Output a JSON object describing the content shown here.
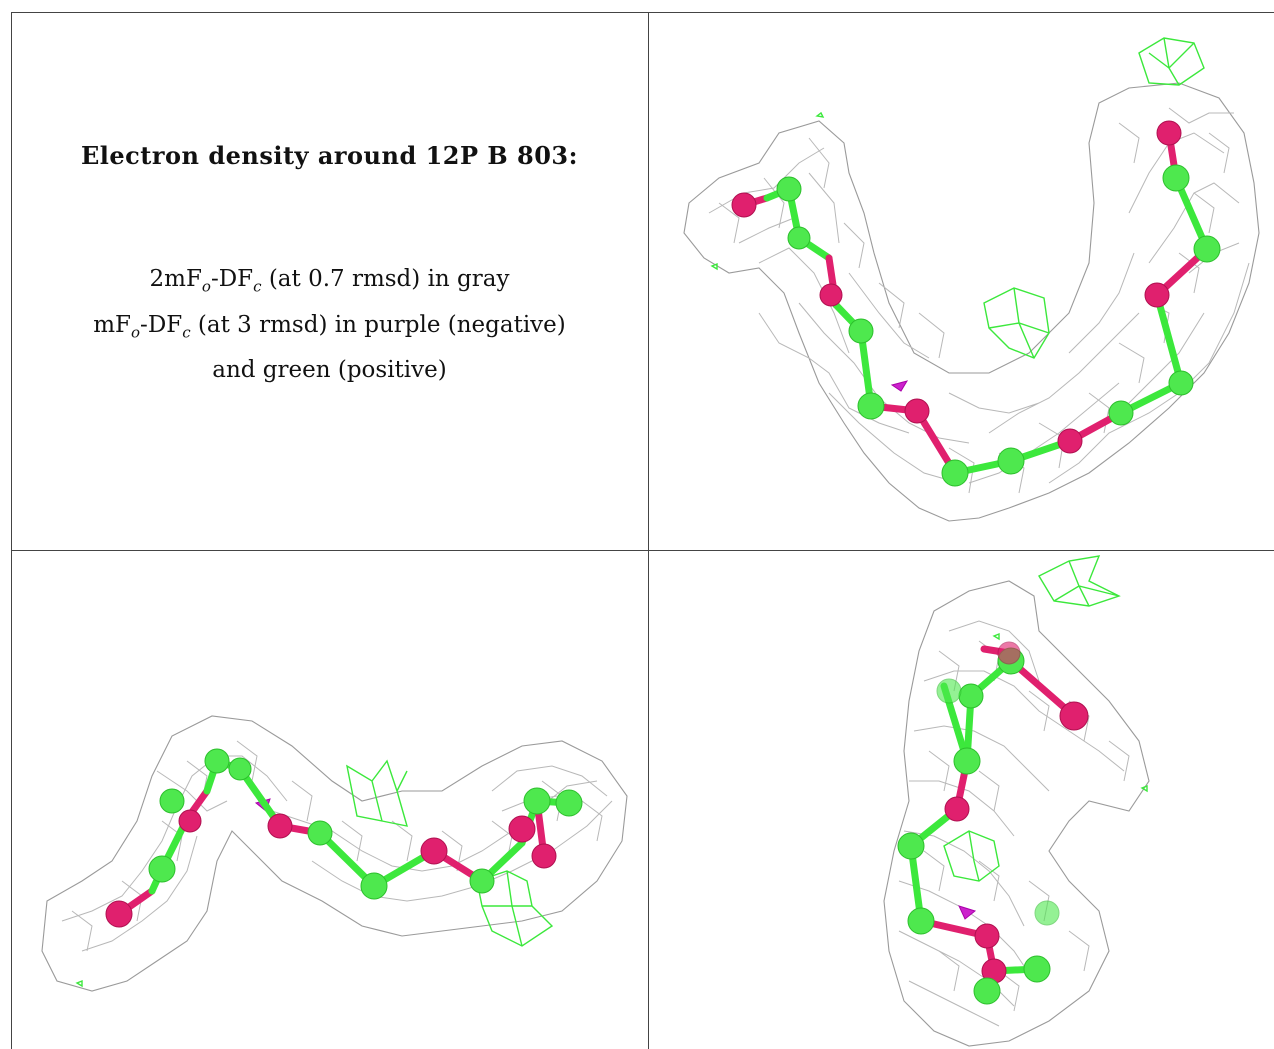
{
  "caption": {
    "title": "Electron density around 12P B 803:",
    "line1_a": "2mF",
    "line1_sub_o": "o",
    "line1_b": "-DF",
    "line1_sub_c": "c",
    "line1_c": " (at 0.7 rmsd) in gray",
    "line2_a": "mF",
    "line2_sub_o": "o",
    "line2_b": "-DF",
    "line2_sub_c": "c",
    "line2_c": " (at 3 rmsd) in purple (negative)",
    "line3": "and green (positive)"
  },
  "colors": {
    "carbon": "#4ee84e",
    "oxygen": "#e0206e",
    "density_2fofc": "#9a9a9a",
    "positive_diff": "#3ce83c",
    "negative_diff": "#cc22cc"
  }
}
